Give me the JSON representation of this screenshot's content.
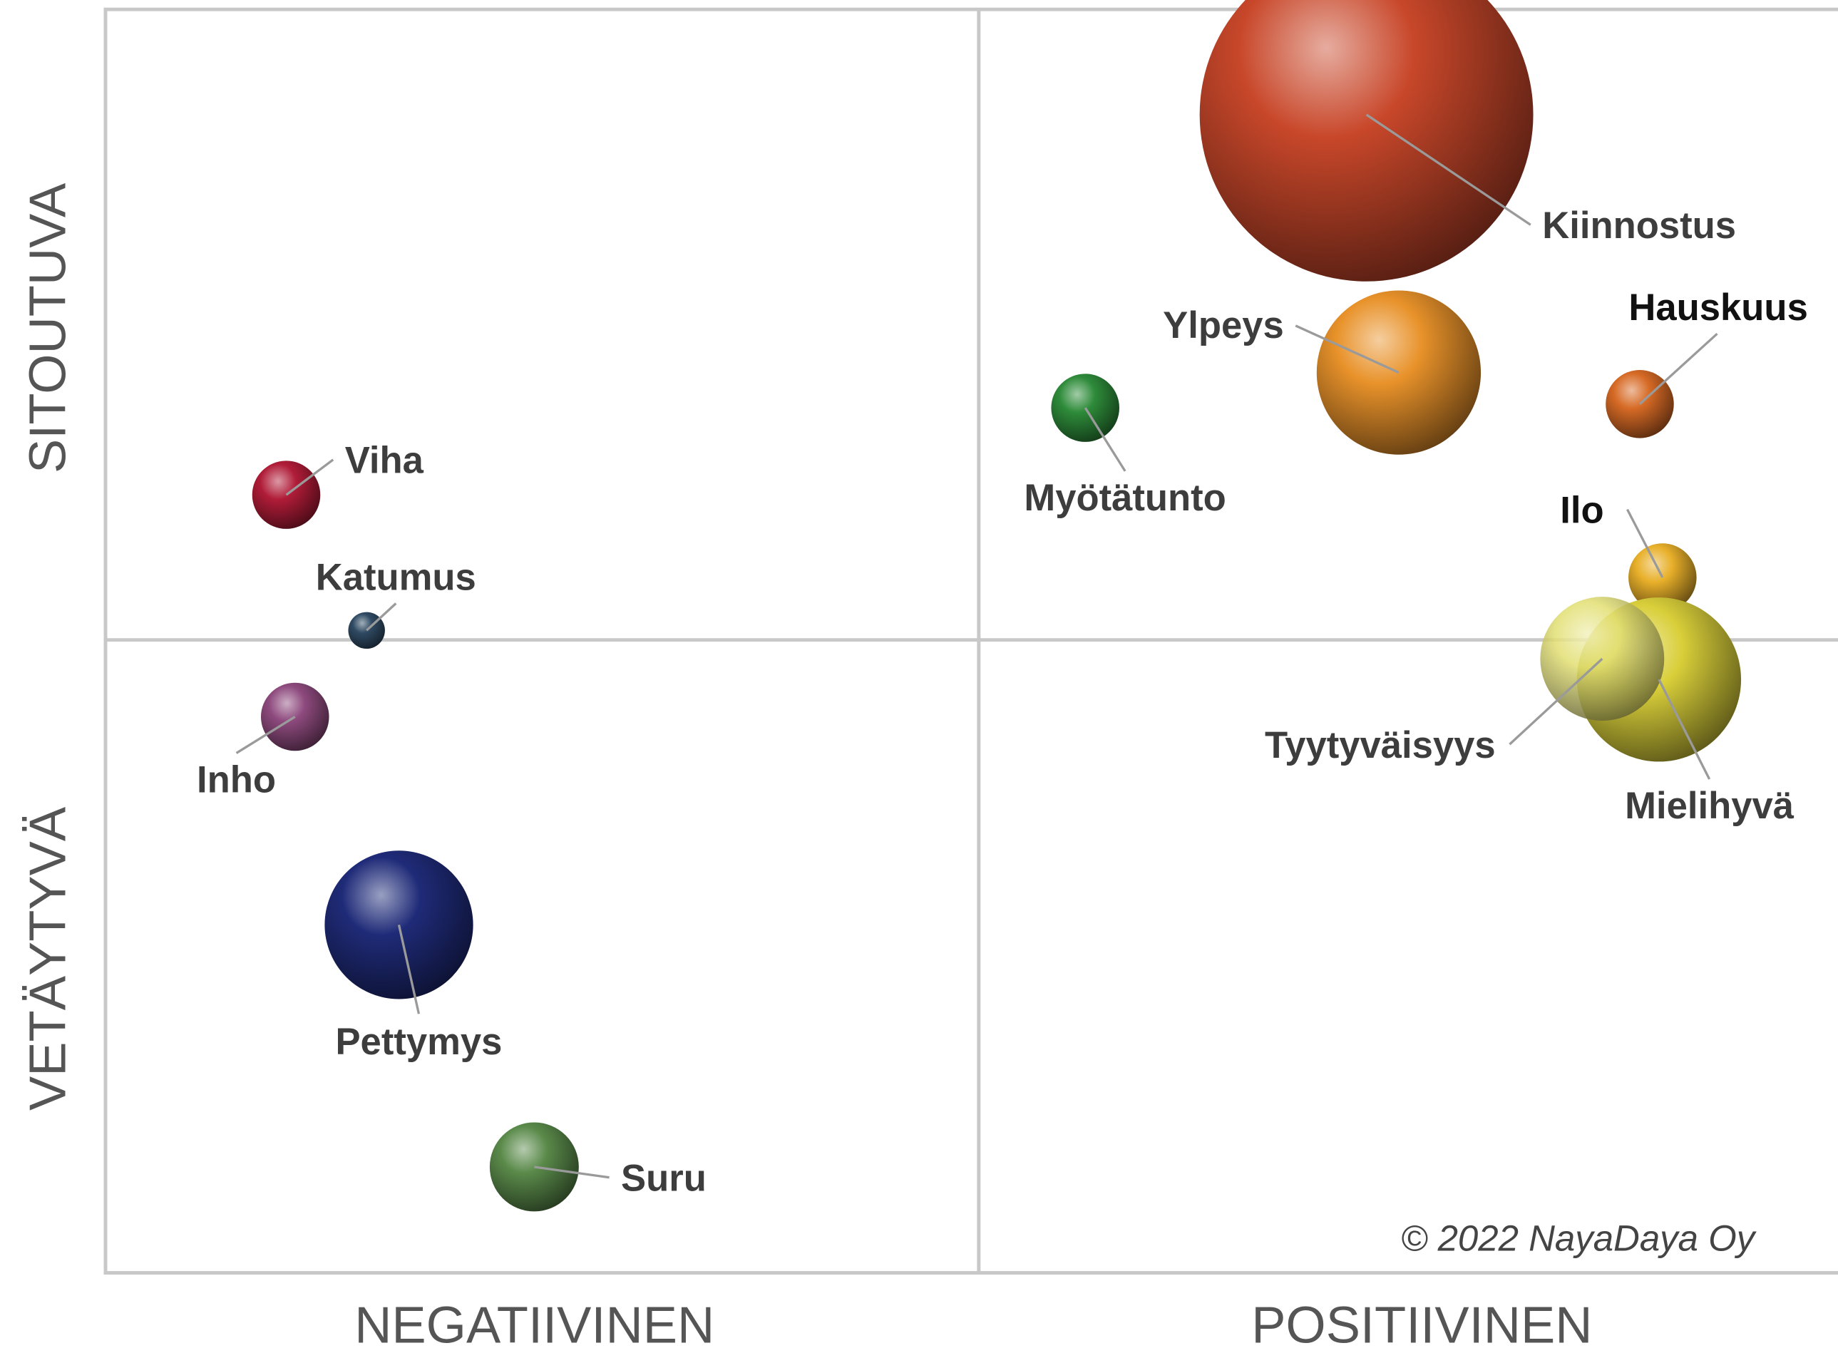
{
  "chart_data": {
    "type": "bubble",
    "x_axis_labels": [
      "NEGATIIVINEN",
      "POSITIIVINEN"
    ],
    "y_axis_labels": [
      "SITOUTUVA",
      "VETÄYTYVÄ"
    ],
    "copyright": "© 2022 NayaDaya Oy",
    "xlim": [
      -100,
      98.4
    ],
    "ylim": [
      -100.4,
      100
    ],
    "points": [
      {
        "name": "Kiinnostus",
        "x": 44.4,
        "y": 83.3,
        "size": 19.1,
        "color": "#c8472a"
      },
      {
        "name": "Ylpeys",
        "x": 48.1,
        "y": 42.4,
        "size": 9.4,
        "color": "#e8922a"
      },
      {
        "name": "Hauskuus",
        "x": 75.7,
        "y": 37.4,
        "size": 3.9,
        "color": "#d66a25"
      },
      {
        "name": "Myötätunto",
        "x": 12.2,
        "y": 36.8,
        "size": 3.9,
        "color": "#2e8b3a"
      },
      {
        "name": "Ilo",
        "x": 78.3,
        "y": 9.9,
        "size": 3.9,
        "color": "#e8b02a"
      },
      {
        "name": "Mielihyvä",
        "x": 77.9,
        "y": -6.3,
        "size": 9.4,
        "color": "#d9cf3a"
      },
      {
        "name": "Tyytyväisyys",
        "x": 71.4,
        "y": -3.0,
        "size": 7.1,
        "color": "#e2df72"
      },
      {
        "name": "Viha",
        "x": -79.3,
        "y": 23.0,
        "size": 3.9,
        "color": "#b01c38"
      },
      {
        "name": "Katumus",
        "x": -70.1,
        "y": 1.5,
        "size": 2.1,
        "color": "#2f4a63"
      },
      {
        "name": "Inho",
        "x": -78.3,
        "y": -12.2,
        "size": 3.9,
        "color": "#8e4a7e"
      },
      {
        "name": "Pettymys",
        "x": -66.4,
        "y": -45.2,
        "size": 8.5,
        "color": "#1f2b78"
      },
      {
        "name": "Suru",
        "x": -50.9,
        "y": -83.6,
        "size": 5.1,
        "color": "#5a8a4a"
      }
    ]
  }
}
